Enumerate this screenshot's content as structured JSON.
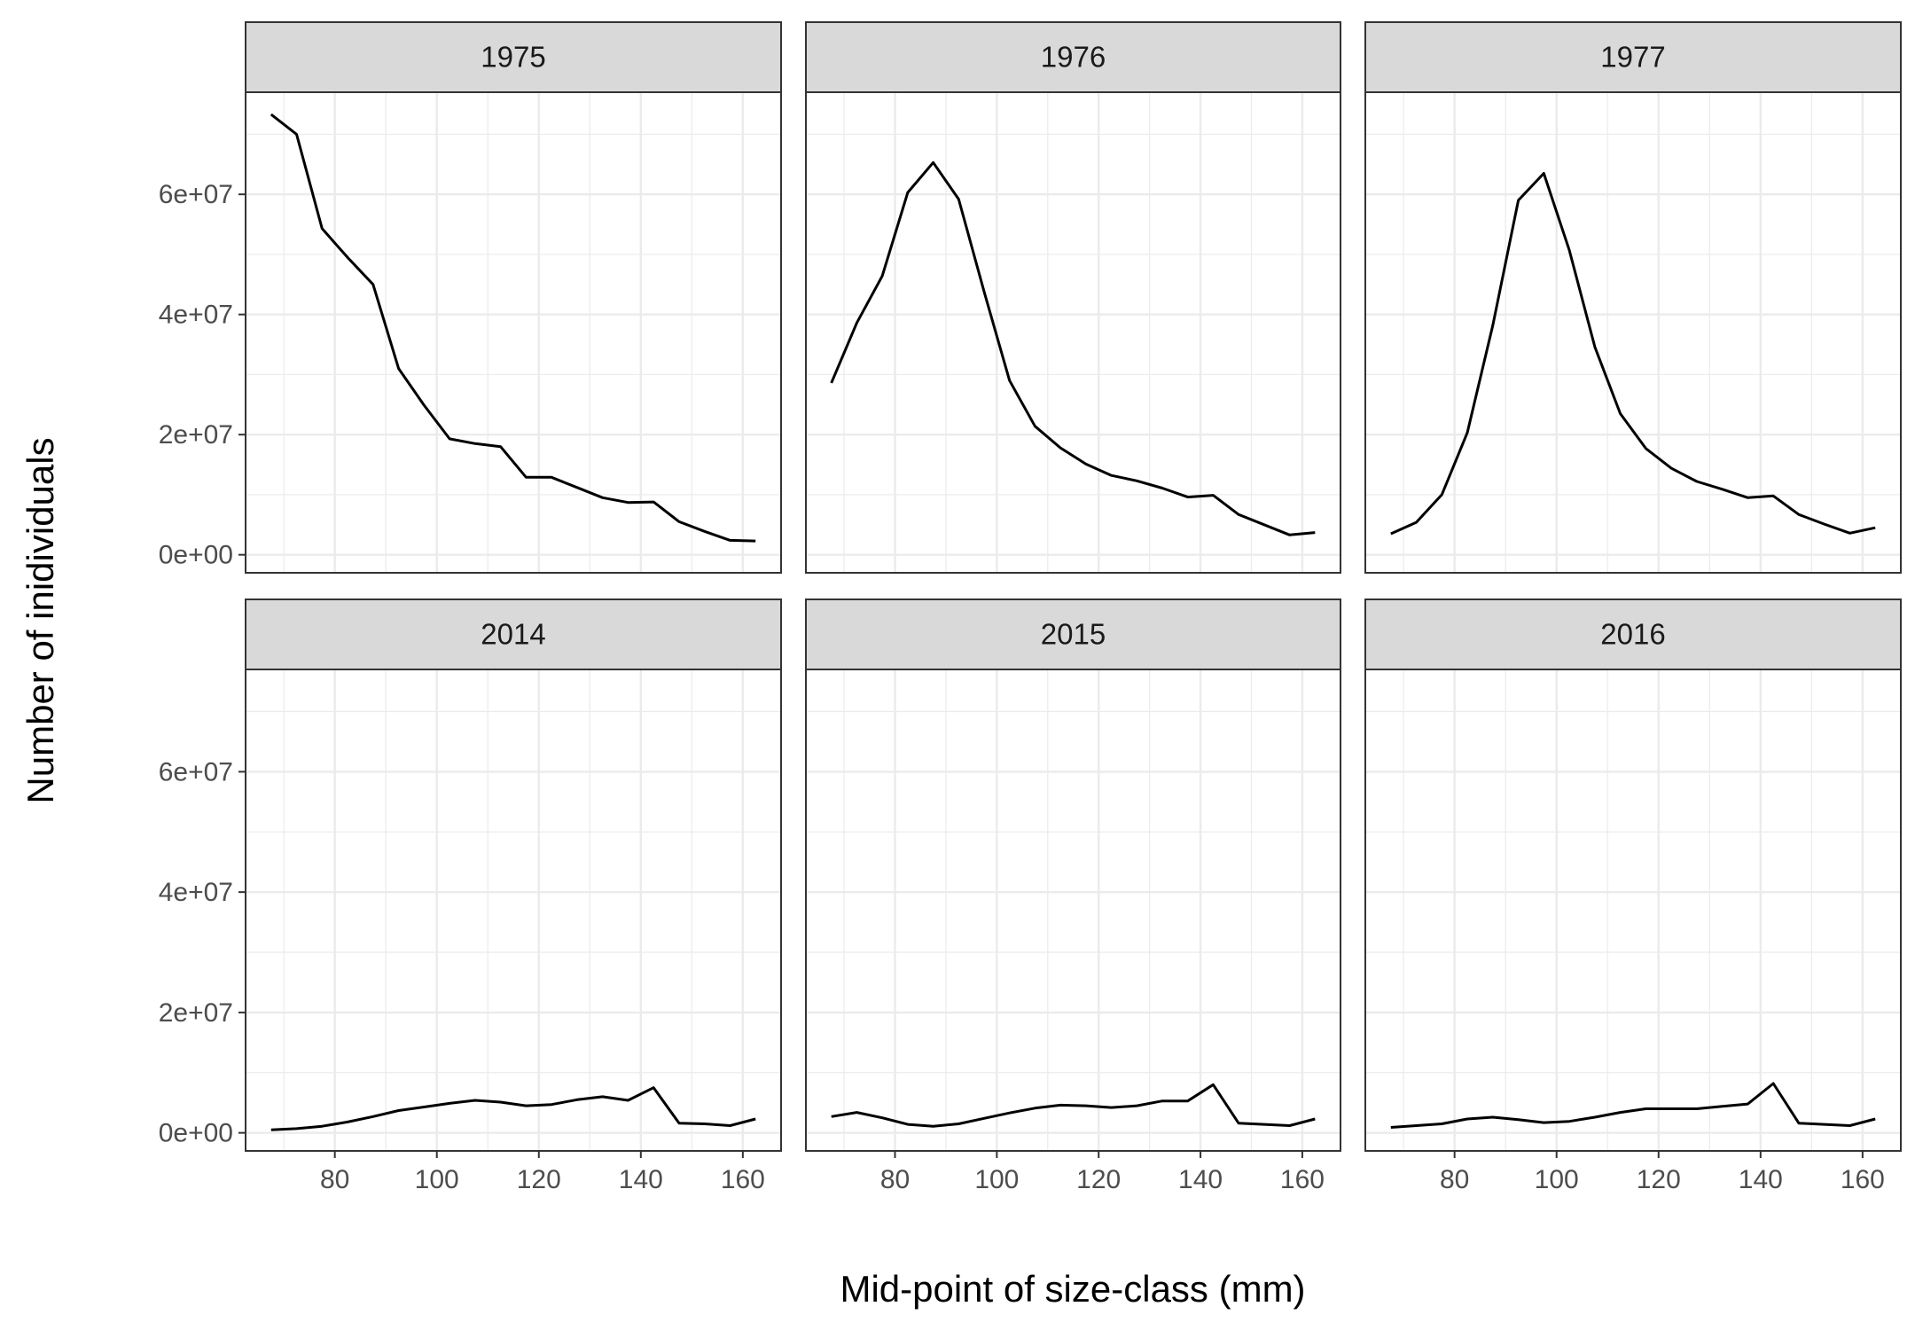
{
  "chart_data": {
    "type": "line",
    "layout": "facet_wrap 2 rows x 3 columns",
    "xlabel": "Mid-point of size-class (mm)",
    "ylabel": "Number of inidividuals",
    "x_ticks": [
      80,
      100,
      120,
      140,
      160
    ],
    "y_ticks": [
      0,
      20000000,
      40000000,
      60000000
    ],
    "y_tick_labels": [
      "0e+00",
      "2e+07",
      "4e+07",
      "6e+07"
    ],
    "xlim": [
      62.5,
      167.5
    ],
    "ylim": [
      -3000000,
      77000000
    ],
    "grid": true,
    "legend": "none",
    "colors": {
      "line": "#000000",
      "strip_bg": "#d9d9d9",
      "grid": "#ebebeb",
      "panel_border": "#333333"
    },
    "x": [
      67.5,
      72.5,
      77.5,
      82.5,
      87.5,
      92.5,
      97.5,
      102.5,
      107.5,
      112.5,
      117.5,
      122.5,
      127.5,
      132.5,
      137.5,
      142.5,
      147.5,
      152.5,
      157.5,
      162.5
    ],
    "panels": [
      {
        "label": "1975",
        "values": [
          73300000,
          70000000,
          54300000,
          49500000,
          45000000,
          31000000,
          24900000,
          19300000,
          18500000,
          18000000,
          12900000,
          12900000,
          11200000,
          9500000,
          8700000,
          8800000,
          5500000,
          3900000,
          2400000,
          2300000
        ]
      },
      {
        "label": "1976",
        "values": [
          28600000,
          38600000,
          46400000,
          60300000,
          65300000,
          59200000,
          43800000,
          29000000,
          21400000,
          17800000,
          15100000,
          13200000,
          12300000,
          11100000,
          9600000,
          9900000,
          6700000,
          5000000,
          3300000,
          3700000
        ]
      },
      {
        "label": "1977",
        "values": [
          3500000,
          5400000,
          10000000,
          20300000,
          38200000,
          59000000,
          63500000,
          50700000,
          34600000,
          23500000,
          17700000,
          14400000,
          12200000,
          10900000,
          9500000,
          9800000,
          6700000,
          5100000,
          3600000,
          4500000
        ]
      },
      {
        "label": "2014",
        "values": [
          500000,
          700000,
          1100000,
          1800000,
          2700000,
          3700000,
          4300000,
          4900000,
          5400000,
          5100000,
          4500000,
          4700000,
          5500000,
          6000000,
          5400000,
          7500000,
          1600000,
          1500000,
          1200000,
          2300000
        ]
      },
      {
        "label": "2015",
        "values": [
          2700000,
          3400000,
          2500000,
          1400000,
          1100000,
          1500000,
          2400000,
          3300000,
          4100000,
          4600000,
          4500000,
          4200000,
          4500000,
          5300000,
          5300000,
          8000000,
          1600000,
          1400000,
          1200000,
          2300000
        ]
      },
      {
        "label": "2016",
        "values": [
          900000,
          1200000,
          1500000,
          2300000,
          2600000,
          2200000,
          1700000,
          1900000,
          2600000,
          3400000,
          4000000,
          4000000,
          4000000,
          4400000,
          4800000,
          8200000,
          1600000,
          1400000,
          1200000,
          2300000
        ]
      }
    ]
  }
}
